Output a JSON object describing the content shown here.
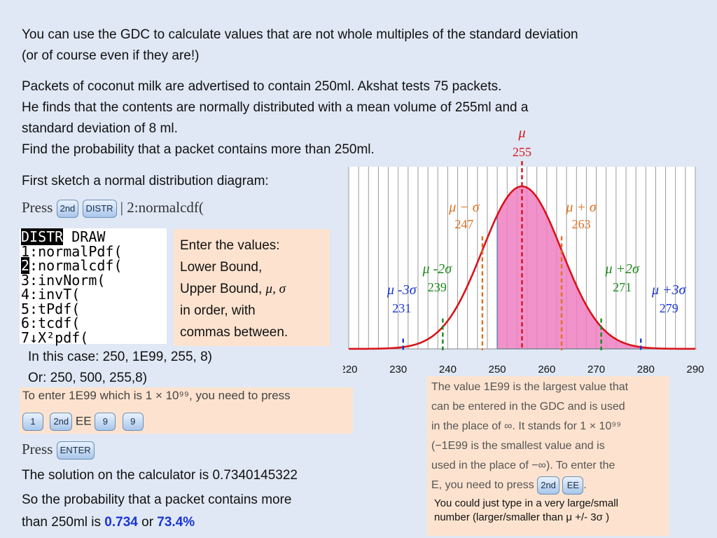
{
  "intro": {
    "line1": "You can use the GDC to calculate values that are not whole multiples of the standard deviation",
    "line2": "(or of course even if they are!)"
  },
  "problem": {
    "line1": "Packets of coconut milk are advertised to contain 250ml.  Akshat tests 75 packets.",
    "line2": "He finds that the contents are normally distributed with a mean volume of 255ml and a",
    "line3": "standard deviation of 8 ml.",
    "line4": "Find the probability that a packet contains more than 250ml."
  },
  "sketch_text": "First sketch a normal distribution diagram:",
  "press_line": {
    "press": "Press",
    "key1": "2nd",
    "key2": "DISTR",
    "rest": "| 2:normalcdf("
  },
  "calculator": {
    "header_inv": "DISTR",
    "header_rest": " DRAW",
    "rows": [
      {
        "num": "1",
        "text": ":normalPdf("
      },
      {
        "num": "2",
        "text": "normalcdf("
      },
      {
        "num": "3",
        "text": ":invNorm("
      },
      {
        "num": "4",
        "text": ":invT("
      },
      {
        "num": "5",
        "text": ":tPdf("
      },
      {
        "num": "6",
        "text": ":tcdf("
      },
      {
        "num": "7",
        "text": "↓X²pdf("
      }
    ]
  },
  "enter_values": {
    "line1": "Enter the values:",
    "line2": "Lower Bound,",
    "line3": "Upper Bound,",
    "symbols": "μ, σ",
    "line4": "in order, with",
    "line5": "commas between."
  },
  "this_case": {
    "line1": "In this case: 250, 1E99, 255, 8)",
    "line2": "Or:  250, 500, 255,8)"
  },
  "ee_box": {
    "text": "To enter 1E99 which is 1 × 10⁹⁹, you need to press",
    "key1": "1",
    "key2": "2nd",
    "ee": "EE",
    "key3": "9",
    "key4": "9"
  },
  "press_enter": {
    "press": "Press",
    "key": "ENTER"
  },
  "solution": {
    "line1": "The solution on the calculator is 0.7340145322",
    "line2": "So the probability that a packet contains more",
    "line3_a": "than 250ml is ",
    "answer1": "0.734",
    "or": " or ",
    "answer2": "73.4%"
  },
  "info_box": {
    "l1": "The value 1E99 is the largest value that",
    "l2": "can be entered in the GDC and is used",
    "l3": "in the place of ∞. It stands for 1 × 10⁹⁹",
    "l4": "(−1E99 is the smallest value and is",
    "l5": "used in the place of −∞). To enter the",
    "l6": "E, you need to press",
    "key1": "2nd",
    "key2": "EE",
    "l6_end": ".",
    "note1": "You could just type in a very large/small",
    "note2": "number (larger/smaller than μ +/- 3σ )"
  },
  "chart_data": {
    "type": "area",
    "distribution": "normal",
    "mean": 255,
    "sd": 8,
    "shaded_from": 250,
    "xlim": [
      220,
      290
    ],
    "x_ticks": [
      220,
      230,
      240,
      250,
      260,
      270,
      280,
      290
    ],
    "markers": [
      {
        "label": "μ",
        "value": 255,
        "color": "#d8141a"
      },
      {
        "label": "μ − σ",
        "value": 247,
        "color": "#e07020"
      },
      {
        "label": "μ + σ",
        "value": 263,
        "color": "#e07020"
      },
      {
        "label": "μ -2σ",
        "value": 239,
        "color": "#1a8a1a"
      },
      {
        "label": "μ +2σ",
        "value": 271,
        "color": "#1a8a1a"
      },
      {
        "label": "μ -3σ",
        "value": 231,
        "color": "#1a35d6"
      },
      {
        "label": "μ +3σ",
        "value": 279,
        "color": "#1a35d6"
      }
    ],
    "colors": {
      "curve": "#d8141a",
      "fill": "#ee7fc2"
    }
  }
}
